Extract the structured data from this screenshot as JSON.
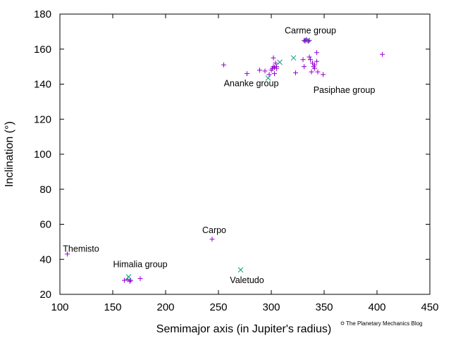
{
  "chart_data": {
    "type": "scatter",
    "title": "",
    "xlabel": "Semimajor axis (in Jupiter's radius)",
    "ylabel": "Inclination (°)",
    "xlim": [
      100,
      450
    ],
    "ylim": [
      20,
      180
    ],
    "xticks": [
      "100",
      "150",
      "200",
      "250",
      "300",
      "350",
      "400",
      "450"
    ],
    "yticks": [
      "20",
      "40",
      "60",
      "80",
      "100",
      "120",
      "140",
      "160",
      "180"
    ],
    "grid": false,
    "series": [
      {
        "marker": "plus",
        "color": "#9400d3",
        "points": [
          [
            107,
            43
          ],
          [
            161,
            28
          ],
          [
            164,
            28.5
          ],
          [
            166,
            27.5
          ],
          [
            167,
            28
          ],
          [
            176,
            29
          ],
          [
            244,
            51.5
          ],
          [
            255,
            151
          ],
          [
            277,
            146
          ],
          [
            289,
            148
          ],
          [
            294,
            147.5
          ],
          [
            298,
            145.5
          ],
          [
            300,
            148
          ],
          [
            301,
            149
          ],
          [
            302,
            150
          ],
          [
            302,
            155
          ],
          [
            303,
            149.5
          ],
          [
            303,
            146
          ],
          [
            304,
            152
          ],
          [
            305,
            150
          ],
          [
            305,
            149
          ],
          [
            323,
            146.5
          ],
          [
            330,
            154
          ],
          [
            331,
            150
          ],
          [
            336,
            155.5
          ],
          [
            337,
            154
          ],
          [
            338,
            147
          ],
          [
            339,
            152
          ],
          [
            340,
            150
          ],
          [
            341,
            151
          ],
          [
            341,
            149
          ],
          [
            343,
            158
          ],
          [
            343,
            153
          ],
          [
            344,
            147
          ],
          [
            349,
            145.5
          ],
          [
            405,
            157
          ],
          [
            331,
            165
          ],
          [
            332,
            164.5
          ],
          [
            333,
            165.5
          ],
          [
            334,
            165
          ],
          [
            335,
            164.5
          ],
          [
            336,
            165
          ]
        ]
      },
      {
        "marker": "x",
        "color": "#009e73",
        "points": [
          [
            165,
            30
          ],
          [
            271,
            34
          ],
          [
            297,
            143.5
          ],
          [
            308,
            152.5
          ],
          [
            321,
            155
          ],
          [
            334,
            165
          ]
        ]
      }
    ],
    "annotations": [
      {
        "text": "Carme group",
        "x": 337,
        "y": 170.5
      },
      {
        "text": "Ananke group",
        "x": 281,
        "y": 140.5
      },
      {
        "text": "Pasiphae group",
        "x": 369,
        "y": 136.5
      },
      {
        "text": "Carpo",
        "x": 246,
        "y": 56.5
      },
      {
        "text": "Themisto",
        "x": 120,
        "y": 46
      },
      {
        "text": "Himalia group",
        "x": 176,
        "y": 37
      },
      {
        "text": "Valetudo",
        "x": 277,
        "y": 28
      }
    ],
    "watermark": "The Planetary Mechanics Blog"
  }
}
